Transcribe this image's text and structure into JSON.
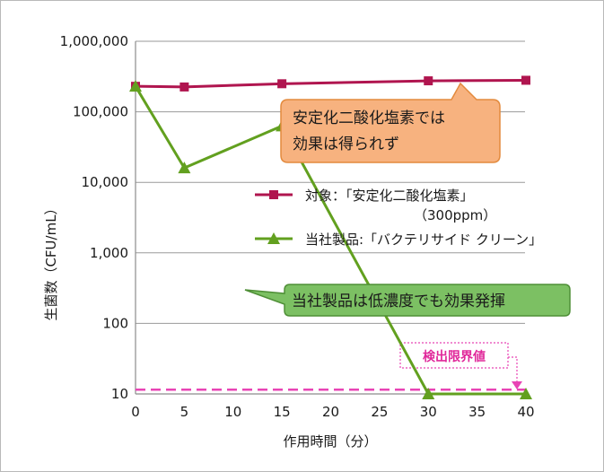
{
  "chart_data": {
    "type": "line",
    "title": "",
    "xlabel": "作用時間（分）",
    "ylabel": "生菌数（CFU/mL）",
    "x_ticks": [
      "0",
      "5",
      "10",
      "15",
      "20",
      "25",
      "30",
      "35",
      "40"
    ],
    "xlim": [
      0,
      40
    ],
    "y_scale": "log",
    "ylim": [
      10,
      1000000
    ],
    "y_ticks": [
      "10",
      "100",
      "1,000",
      "10,000",
      "100,000",
      "1,000,000"
    ],
    "y_tick_values": [
      10,
      100,
      1000,
      10000,
      100000,
      1000000
    ],
    "grid": true,
    "legend_position": "right-middle",
    "series": [
      {
        "name_line1": "対象：「安定化二酸化塩素」",
        "name_line2": "（300ppm）",
        "color": "#b0154f",
        "marker": "square",
        "x": [
          0,
          5,
          15,
          30,
          40
        ],
        "y": [
          230000,
          225000,
          250000,
          275000,
          280000
        ]
      },
      {
        "name_line1": "当社製品:「バクテリサイド クリーン」",
        "name_line2": "",
        "color": "#62a01f",
        "marker": "triangle",
        "x": [
          0,
          5,
          15,
          30,
          40
        ],
        "y": [
          230000,
          16000,
          63000,
          10,
          10
        ]
      }
    ],
    "detection_limit": {
      "value": 11.5,
      "label": "検出限界値",
      "color": "#e844b5"
    },
    "annotations": [
      {
        "text_line1": "安定化二酸化塩素では",
        "text_line2": "効果は得られず",
        "fill": "#f7b27f",
        "stroke": "#e38a3d"
      },
      {
        "text_line1": "当社製品は低濃度でも効果発揮",
        "text_line2": "",
        "fill": "#7cc063",
        "stroke": "#4f8f37"
      }
    ]
  }
}
